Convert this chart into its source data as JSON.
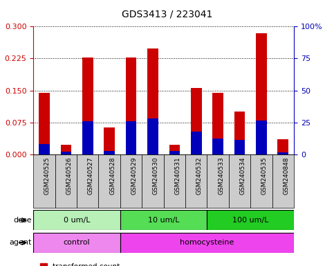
{
  "title": "GDS3413 / 223041",
  "samples": [
    "GSM240525",
    "GSM240526",
    "GSM240527",
    "GSM240528",
    "GSM240529",
    "GSM240530",
    "GSM240531",
    "GSM240532",
    "GSM240533",
    "GSM240534",
    "GSM240535",
    "GSM240848"
  ],
  "red_values": [
    0.145,
    0.022,
    0.228,
    0.063,
    0.228,
    0.248,
    0.022,
    0.155,
    0.145,
    0.1,
    0.285,
    0.035
  ],
  "blue_percentile": [
    8,
    2,
    26,
    2.5,
    26,
    28,
    2.5,
    18,
    12.5,
    11.5,
    26.5,
    1.5
  ],
  "ylim_left": [
    0,
    0.3
  ],
  "ylim_right": [
    0,
    100
  ],
  "yticks_left": [
    0,
    0.075,
    0.15,
    0.225,
    0.3
  ],
  "yticks_right": [
    0,
    25,
    50,
    75,
    100
  ],
  "dose_groups": [
    {
      "label": "0 um/L",
      "start": 0,
      "end": 4,
      "color": "#b8f0b8"
    },
    {
      "label": "10 um/L",
      "start": 4,
      "end": 8,
      "color": "#55dd55"
    },
    {
      "label": "100 um/L",
      "start": 8,
      "end": 12,
      "color": "#22cc22"
    }
  ],
  "agent_groups": [
    {
      "label": "control",
      "start": 0,
      "end": 4,
      "color": "#ee88ee"
    },
    {
      "label": "homocysteine",
      "start": 4,
      "end": 12,
      "color": "#ee44ee"
    }
  ],
  "bar_color_red": "#cc0000",
  "bar_color_blue": "#0000bb",
  "bar_width": 0.5,
  "tick_label_color_left": "#cc0000",
  "tick_label_color_right": "#0000bb",
  "background_color": "#ffffff",
  "xlabel_area_color": "#cccccc"
}
